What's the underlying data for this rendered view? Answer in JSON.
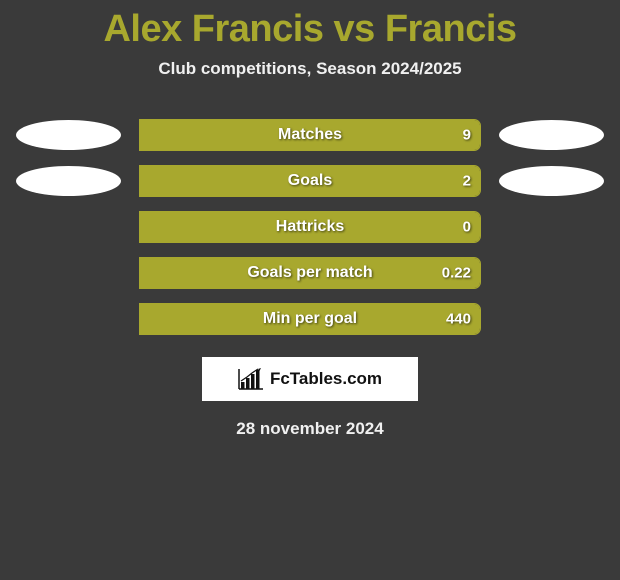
{
  "title": "Alex Francis vs Francis",
  "subtitle": "Club competitions, Season 2024/2025",
  "brand": "FcTables.com",
  "date_line": "28 november 2024",
  "colors": {
    "accent": "#a8a82e",
    "background": "#3a3a3a",
    "text_light": "#f0f0f0",
    "oval": "#ffffff"
  },
  "stats": [
    {
      "label": "Matches",
      "value": "9",
      "fill_pct": 100,
      "show_ovals": true
    },
    {
      "label": "Goals",
      "value": "2",
      "fill_pct": 100,
      "show_ovals": true
    },
    {
      "label": "Hattricks",
      "value": "0",
      "fill_pct": 100,
      "show_ovals": false
    },
    {
      "label": "Goals per match",
      "value": "0.22",
      "fill_pct": 100,
      "show_ovals": false
    },
    {
      "label": "Min per goal",
      "value": "440",
      "fill_pct": 100,
      "show_ovals": false
    }
  ]
}
